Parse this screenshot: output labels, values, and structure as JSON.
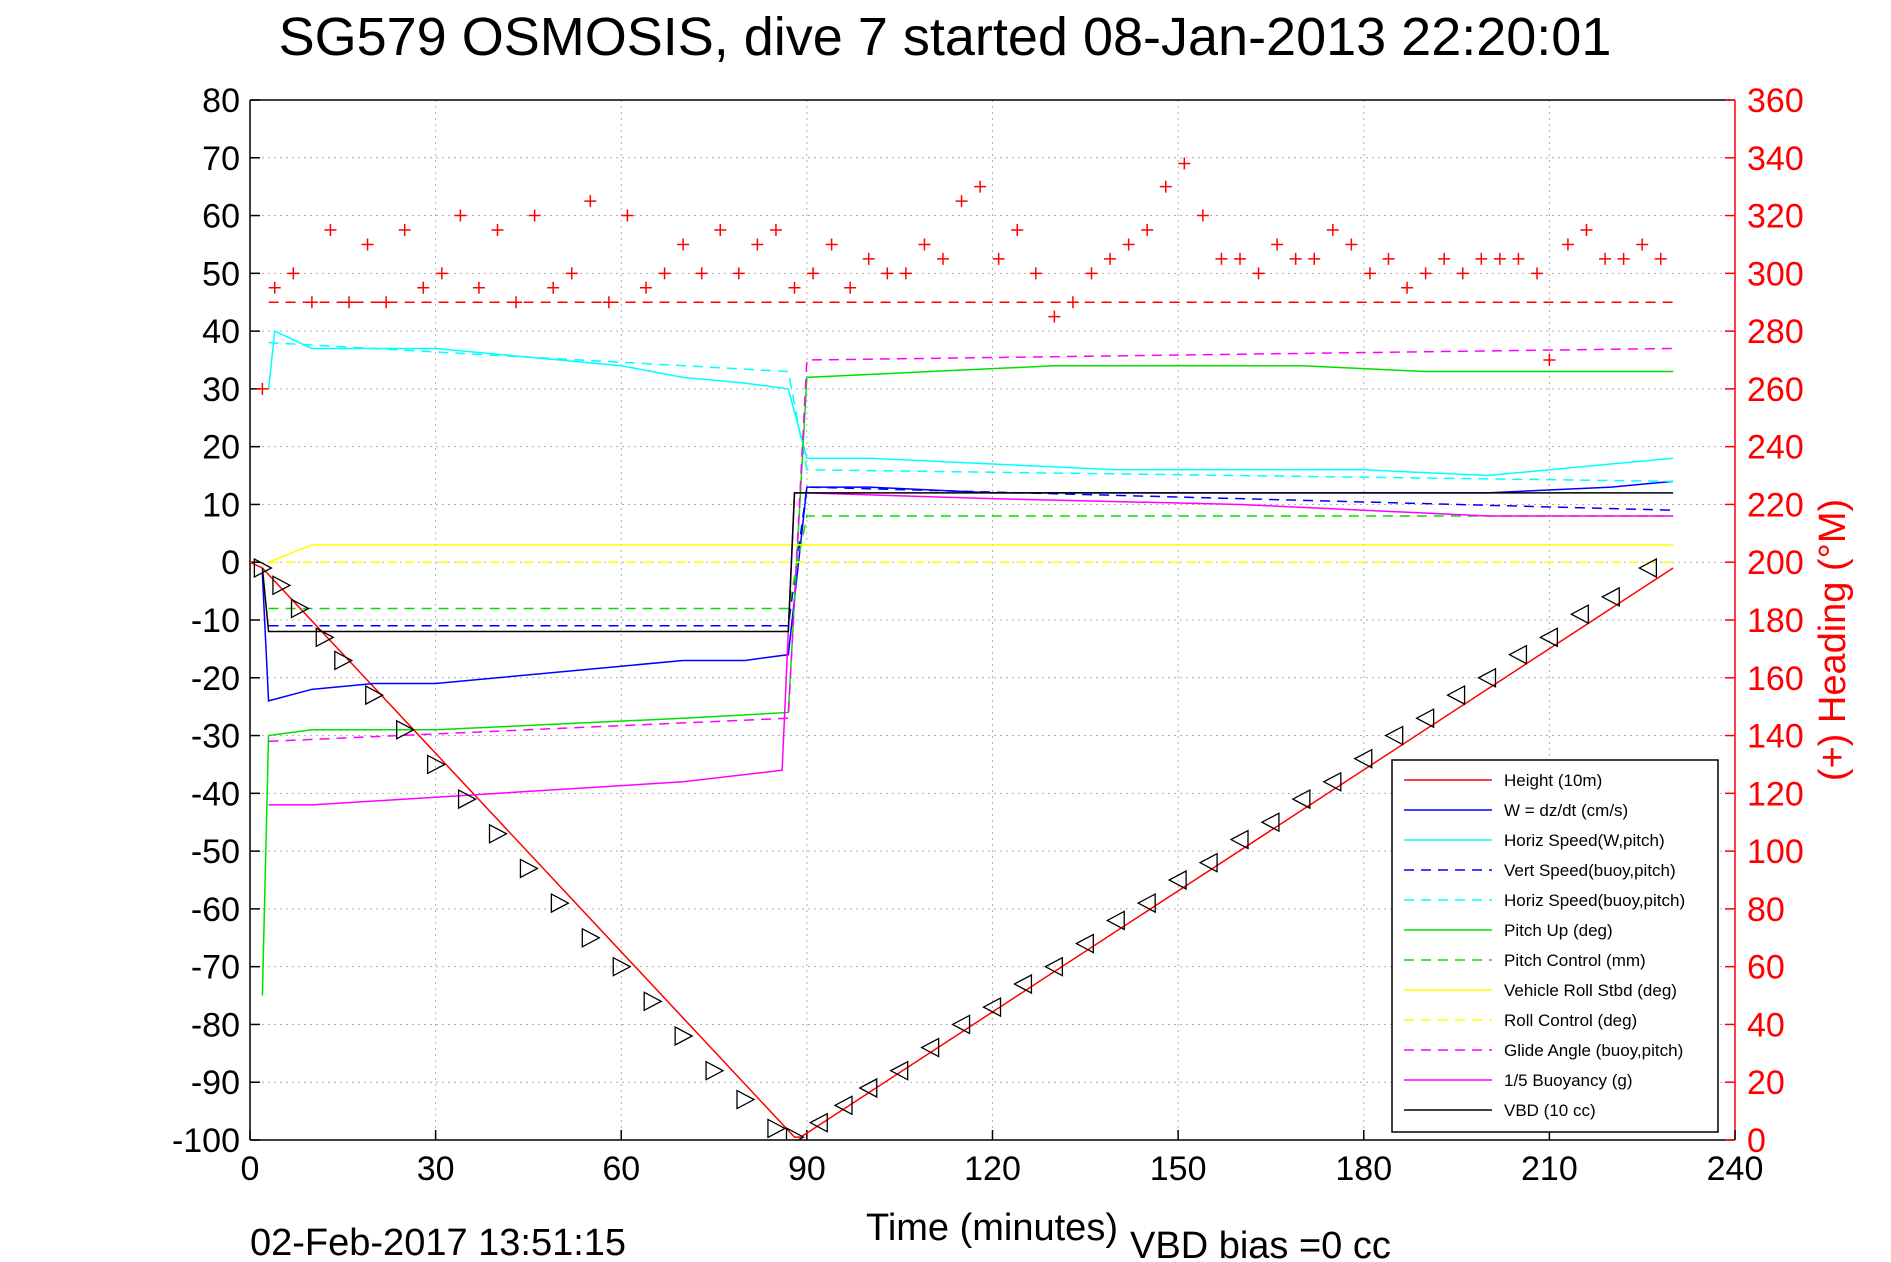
{
  "chart_data": {
    "type": "line",
    "title": "SG579 OSMOSIS, dive 7 started 08-Jan-2013 22:20:01",
    "xlabel": "Time (minutes)",
    "ylabel": "",
    "y2label": "(+) Heading (°M)",
    "xlim": [
      0,
      240
    ],
    "ylim": [
      -100,
      80
    ],
    "y2lim": [
      0,
      360
    ],
    "xticks": [
      0,
      30,
      60,
      90,
      120,
      150,
      180,
      210,
      240
    ],
    "yticks": [
      80,
      70,
      60,
      50,
      40,
      30,
      20,
      10,
      0,
      -10,
      -20,
      -30,
      -40,
      -50,
      -60,
      -70,
      -80,
      -90,
      -100
    ],
    "y2ticks": [
      360,
      340,
      320,
      300,
      280,
      260,
      240,
      220,
      200,
      180,
      160,
      140,
      120,
      100,
      80,
      60,
      40,
      20,
      0
    ],
    "grid": true,
    "legend_position": "bottom-right",
    "footer_date": "02-Feb-2017 13:51:15",
    "footer_note": "VBD bias =0 cc",
    "colors": {
      "red": "#ff0000",
      "blue": "#0000ff",
      "cyan": "#00ffff",
      "green": "#00e000",
      "yellow": "#ffff00",
      "magenta": "#ff00ff",
      "black": "#000000"
    },
    "heading_reference": 290,
    "series": [
      {
        "name": "Height (10m)",
        "color": "#ff0000",
        "style": "solid",
        "axis": "left",
        "x": [
          0,
          2,
          88,
          89,
          230
        ],
        "y": [
          0,
          -1,
          -99.5,
          -99.5,
          -1
        ]
      },
      {
        "name": "W = dz/dt (cm/s)",
        "color": "#0000ff",
        "style": "solid",
        "axis": "left",
        "x": [
          2,
          3,
          10,
          20,
          30,
          40,
          50,
          60,
          70,
          80,
          87,
          90,
          100,
          120,
          140,
          160,
          180,
          200,
          220,
          230
        ],
        "y": [
          -2,
          -24,
          -22,
          -21,
          -21,
          -20,
          -19,
          -18,
          -17,
          -17,
          -16,
          13,
          13,
          12,
          12,
          12,
          12,
          12,
          13,
          14
        ]
      },
      {
        "name": "Horiz Speed(W,pitch)",
        "color": "#00ffff",
        "style": "solid",
        "axis": "left",
        "x": [
          3,
          4,
          10,
          20,
          30,
          40,
          50,
          60,
          70,
          80,
          87,
          90,
          100,
          120,
          140,
          160,
          180,
          200,
          220,
          230
        ],
        "y": [
          30,
          40,
          37,
          37,
          37,
          36,
          35,
          34,
          32,
          31,
          30,
          18,
          18,
          17,
          16,
          16,
          16,
          15,
          17,
          18
        ]
      },
      {
        "name": "Vert Speed(buoy,pitch)",
        "color": "#0000ff",
        "style": "dashed",
        "axis": "left",
        "x": [
          3,
          87,
          90,
          230
        ],
        "y": [
          -11,
          -11,
          13,
          9
        ]
      },
      {
        "name": "Horiz Speed(buoy,pitch)",
        "color": "#00ffff",
        "style": "dashed",
        "axis": "left",
        "x": [
          3,
          87,
          90,
          230
        ],
        "y": [
          38,
          33,
          16,
          14
        ]
      },
      {
        "name": "Pitch Up (deg)",
        "color": "#00e000",
        "style": "solid",
        "axis": "left",
        "x": [
          2,
          3,
          10,
          30,
          50,
          70,
          87,
          90,
          110,
          130,
          150,
          170,
          190,
          210,
          230
        ],
        "y": [
          -75,
          -30,
          -29,
          -29,
          -28,
          -27,
          -26,
          32,
          33,
          34,
          34,
          34,
          33,
          33,
          33
        ]
      },
      {
        "name": "Pitch Control (mm)",
        "color": "#00e000",
        "style": "dashed",
        "axis": "left",
        "x": [
          3,
          87,
          90,
          230
        ],
        "y": [
          -8,
          -8,
          8,
          8
        ]
      },
      {
        "name": "Vehicle Roll Stbd (deg)",
        "color": "#ffff00",
        "style": "solid",
        "axis": "left",
        "x": [
          3,
          10,
          20,
          30,
          40,
          50,
          60,
          70,
          80,
          87,
          90,
          110,
          130,
          150,
          170,
          190,
          210,
          230
        ],
        "y": [
          0,
          3,
          3,
          3,
          3,
          3,
          3,
          3,
          3,
          3,
          3,
          3,
          3,
          3,
          3,
          3,
          3,
          3
        ]
      },
      {
        "name": "Roll Control (deg)",
        "color": "#ffff00",
        "style": "dashed",
        "axis": "left",
        "x": [
          3,
          230
        ],
        "y": [
          0,
          0
        ]
      },
      {
        "name": "Glide Angle (buoy,pitch)",
        "color": "#ff00ff",
        "style": "dashed",
        "axis": "left",
        "x": [
          3,
          87,
          90,
          230
        ],
        "y": [
          -31,
          -27,
          35,
          37
        ]
      },
      {
        "name": "1/5 Buoyancy (g)",
        "color": "#ff00ff",
        "style": "solid",
        "axis": "left",
        "x": [
          3,
          10,
          40,
          70,
          86,
          88,
          90,
          120,
          160,
          200,
          230
        ],
        "y": [
          -42,
          -42,
          -40,
          -38,
          -36,
          12,
          12,
          11,
          10,
          8,
          8
        ]
      },
      {
        "name": "VBD (10 cc)",
        "color": "#000000",
        "style": "solid",
        "axis": "left",
        "x": [
          2,
          3,
          87,
          88,
          230
        ],
        "y": [
          -1,
          -12,
          -12,
          12,
          12
        ]
      },
      {
        "name": "Heading",
        "color": "#ff0000",
        "style": "plus-markers",
        "axis": "right",
        "x": [
          2,
          4,
          7,
          10,
          13,
          16,
          19,
          22,
          25,
          28,
          31,
          34,
          37,
          40,
          43,
          46,
          49,
          52,
          55,
          58,
          61,
          64,
          67,
          70,
          73,
          76,
          79,
          82,
          85,
          88,
          91,
          94,
          97,
          100,
          103,
          106,
          109,
          112,
          115,
          118,
          121,
          124,
          127,
          130,
          133,
          136,
          139,
          142,
          145,
          148,
          151,
          154,
          157,
          160,
          163,
          166,
          169,
          172,
          175,
          178,
          181,
          184,
          187,
          190,
          193,
          196,
          199,
          202,
          205,
          208,
          210,
          213,
          216,
          219,
          222,
          225,
          228
        ],
        "y": [
          260,
          295,
          300,
          290,
          315,
          290,
          310,
          290,
          315,
          295,
          300,
          320,
          295,
          315,
          290,
          320,
          295,
          300,
          325,
          290,
          320,
          295,
          300,
          310,
          300,
          315,
          300,
          310,
          315,
          295,
          300,
          310,
          295,
          305,
          300,
          300,
          310,
          305,
          325,
          330,
          305,
          315,
          300,
          285,
          290,
          300,
          305,
          310,
          315,
          330,
          338,
          320,
          305,
          305,
          300,
          310,
          305,
          305,
          315,
          310,
          300,
          305,
          295,
          300,
          305,
          300,
          305,
          305,
          305,
          300,
          270,
          310,
          315,
          305,
          305,
          310,
          305
        ]
      }
    ],
    "markers": {
      "name": "triangle markers on Height",
      "x": [
        2,
        5,
        8,
        12,
        15,
        20,
        25,
        30,
        35,
        40,
        45,
        50,
        55,
        60,
        65,
        70,
        75,
        80,
        85,
        88,
        92,
        96,
        100,
        105,
        110,
        115,
        120,
        125,
        130,
        135,
        140,
        145,
        150,
        155,
        160,
        165,
        170,
        175,
        180,
        185,
        190,
        195,
        200,
        205,
        210,
        215,
        220,
        226
      ],
      "y": [
        -1,
        -4,
        -8,
        -13,
        -17,
        -23,
        -29,
        -35,
        -41,
        -47,
        -53,
        -59,
        -65,
        -70,
        -76,
        -82,
        -88,
        -93,
        -98,
        -99.5,
        -97,
        -94,
        -91,
        -88,
        -84,
        -80,
        -77,
        -73,
        -70,
        -66,
        -62,
        -59,
        -55,
        -52,
        -48,
        -45,
        -41,
        -38,
        -34,
        -30,
        -27,
        -23,
        -20,
        -16,
        -13,
        -9,
        -6,
        -1
      ]
    }
  }
}
